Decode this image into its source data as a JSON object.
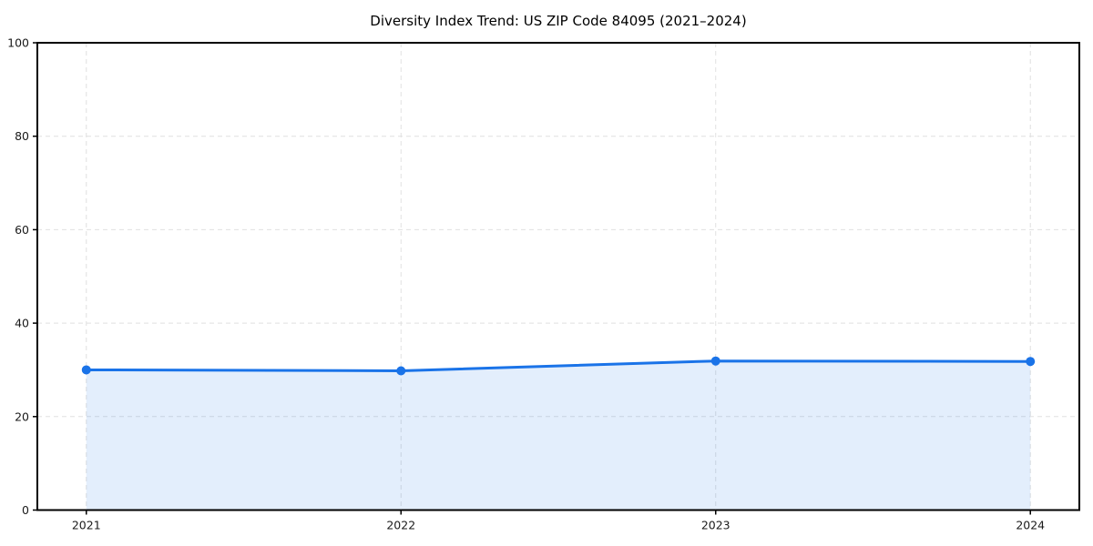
{
  "chart_data": {
    "type": "area",
    "title": "Diversity Index Trend: US ZIP Code 84095 (2021–2024)",
    "categories": [
      "2021",
      "2022",
      "2023",
      "2024"
    ],
    "series": [
      {
        "name": "Diversity Index",
        "values": [
          30.0,
          29.8,
          31.9,
          31.8
        ]
      }
    ],
    "xlabel": "",
    "ylabel": "",
    "ylim": [
      0,
      100
    ],
    "yticks": [
      0,
      20,
      40,
      60,
      80,
      100
    ],
    "grid": true,
    "grid_style": "dashed",
    "legend": false,
    "marker": "circle",
    "colors": {
      "line": "#1a73e8",
      "marker": "#1a73e8",
      "fill": "rgba(26,115,232,0.12)",
      "grid": "#e0e0e0",
      "axis": "#000000",
      "tick_text": "#1a1a1a",
      "background": "#ffffff"
    }
  }
}
